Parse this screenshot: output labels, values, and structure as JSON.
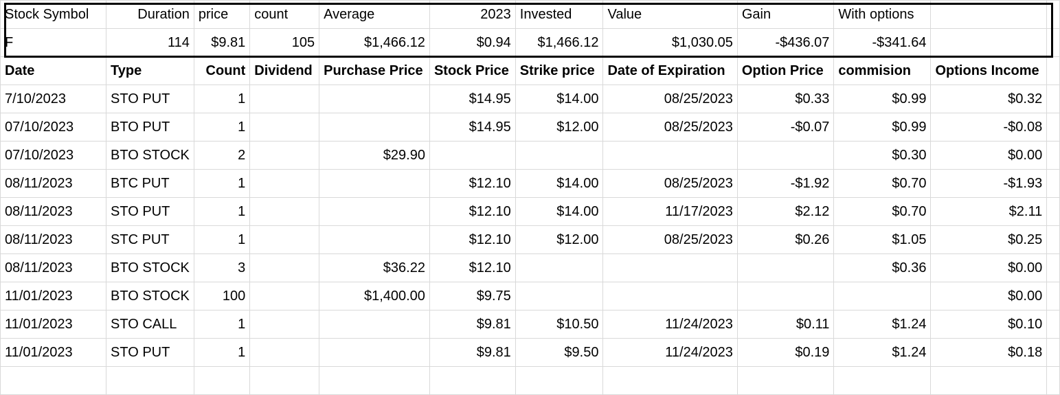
{
  "summary": {
    "headers": [
      "Stock Symbol",
      "Duration",
      "price",
      "count",
      "Average",
      "2023",
      "Invested",
      "Value",
      "Gain",
      "With options",
      ""
    ],
    "values": [
      "F",
      "114",
      "$9.81",
      "105",
      "$1,466.12",
      "$0.94",
      "$1,466.12",
      "$1,030.05",
      "-$436.07",
      "-$341.64",
      ""
    ]
  },
  "table": {
    "headers": [
      "Date",
      "Type",
      "Count",
      "Dividend",
      "Purchase Price",
      "Stock Price",
      "Strike price",
      "Date of Expiration",
      "Option Price",
      "commision",
      "Options Income"
    ],
    "rows": [
      [
        "7/10/2023",
        "STO PUT",
        "1",
        "",
        "",
        "$14.95",
        "$14.00",
        "08/25/2023",
        "$0.33",
        "$0.99",
        "$0.32"
      ],
      [
        "07/10/2023",
        "BTO PUT",
        "1",
        "",
        "",
        "$14.95",
        "$12.00",
        "08/25/2023",
        "-$0.07",
        "$0.99",
        "-$0.08"
      ],
      [
        "07/10/2023",
        "BTO STOCK",
        "2",
        "",
        "$29.90",
        "",
        "",
        "",
        "",
        "$0.30",
        "$0.00"
      ],
      [
        "08/11/2023",
        "BTC PUT",
        "1",
        "",
        "",
        "$12.10",
        "$14.00",
        "08/25/2023",
        "-$1.92",
        "$0.70",
        "-$1.93"
      ],
      [
        "08/11/2023",
        "STO PUT",
        "1",
        "",
        "",
        "$12.10",
        "$14.00",
        "11/17/2023",
        "$2.12",
        "$0.70",
        "$2.11"
      ],
      [
        "08/11/2023",
        "STC PUT",
        "1",
        "",
        "",
        "$12.10",
        "$12.00",
        "08/25/2023",
        "$0.26",
        "$1.05",
        "$0.25"
      ],
      [
        "08/11/2023",
        "BTO STOCK",
        "3",
        "",
        "$36.22",
        "$12.10",
        "",
        "",
        "",
        "$0.36",
        "$0.00"
      ],
      [
        "11/01/2023",
        "BTO STOCK",
        "100",
        "",
        "$1,400.00",
        "$9.75",
        "",
        "",
        "",
        "",
        "$0.00"
      ],
      [
        "11/01/2023",
        "STO CALL",
        "1",
        "",
        "",
        "$9.81",
        "$10.50",
        "11/24/2023",
        "$0.11",
        "$1.24",
        "$0.10"
      ],
      [
        "11/01/2023",
        "STO PUT",
        "1",
        "",
        "",
        "$9.81",
        "$9.50",
        "11/24/2023",
        "$0.19",
        "$1.24",
        "$0.18"
      ]
    ]
  }
}
